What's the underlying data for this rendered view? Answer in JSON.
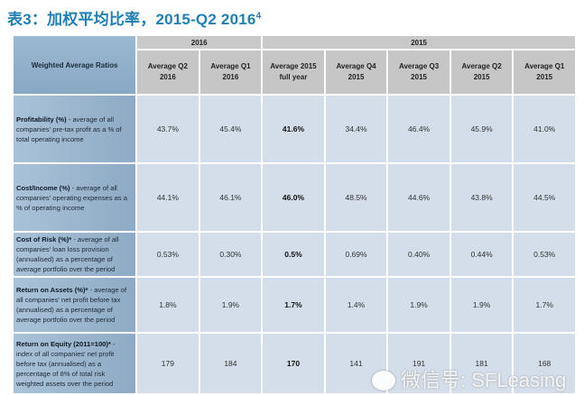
{
  "title": "表3：加权平均比率，2015-Q2 2016",
  "title_sup": "4",
  "table": {
    "corner_label": "Weighted Average Ratios",
    "groups": [
      {
        "label": "2016"
      },
      {
        "label": "2015"
      }
    ],
    "columns": [
      {
        "line1": "Average Q2",
        "line2": "2016"
      },
      {
        "line1": "Average Q1",
        "line2": "2016"
      },
      {
        "line1": "Average 2015",
        "line2": "full year"
      },
      {
        "line1": "Average Q4",
        "line2": "2015"
      },
      {
        "line1": "Average Q3",
        "line2": "2015"
      },
      {
        "line1": "Average Q2",
        "line2": "2015"
      },
      {
        "line1": "Average Q1",
        "line2": "2015"
      }
    ],
    "rows": [
      {
        "name": "Profitability (%)",
        "desc": " - average of all companies' pre-tax profit as a % of total operating income",
        "values": [
          "43.7%",
          "45.4%",
          "41.6%",
          "34.4%",
          "46.4%",
          "45.9%",
          "41.0%"
        ]
      },
      {
        "name": "Cost/Income (%)",
        "desc": " - average of all companies' operating expenses as a % of operating income",
        "values": [
          "44.1%",
          "46.1%",
          "46.0%",
          "48.5%",
          "44.6%",
          "43.8%",
          "44.5%"
        ]
      },
      {
        "name": "Cost of Risk (%)*",
        "desc": " - average of all companies' loan loss provision (annualised) as a percentage of average portfolio over the period",
        "values": [
          "0.53%",
          "0.30%",
          "0.5%",
          "0.69%",
          "0.40%",
          "0.44%",
          "0.53%"
        ]
      },
      {
        "name": "Return on Assets (%)*",
        "desc": " - average of all companies' net profit before tax (annualised) as a percentage of average portfolio over the period",
        "values": [
          "1.8%",
          "1.9%",
          "1.7%",
          "1.4%",
          "1.9%",
          "1.9%",
          "1.7%"
        ]
      },
      {
        "name": "Return on Equity (2011=100)*",
        "desc": " - index of all companies' net profit before tax (annualised) as a percentage of 8% of total risk weighted assets over the period",
        "values": [
          "179",
          "184",
          "170",
          "141",
          "191",
          "181",
          "168"
        ]
      }
    ]
  },
  "watermark": "微信号: SFLeasing"
}
